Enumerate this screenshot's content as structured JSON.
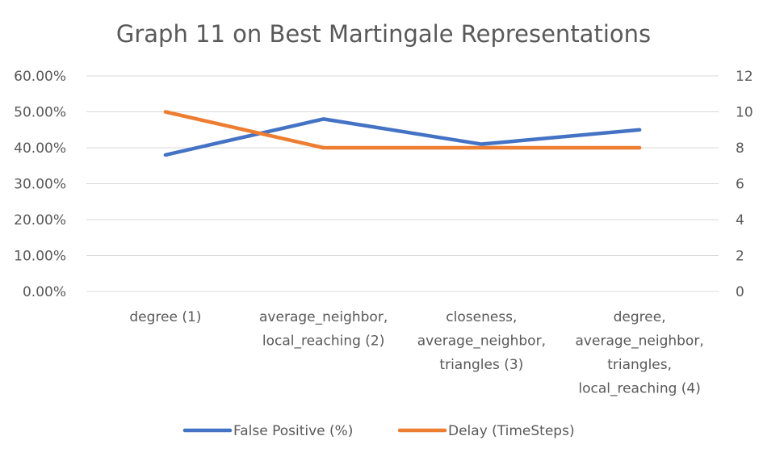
{
  "chart_data": {
    "type": "line",
    "title": "Graph 11 on Best Martingale Representations",
    "categories": [
      [
        "degree (1)"
      ],
      [
        "average_neighbor,",
        "local_reaching (2)"
      ],
      [
        "closeness,",
        "average_neighbor,",
        "triangles (3)"
      ],
      [
        "degree,",
        "average_neighbor,",
        "triangles,",
        "local_reaching (4)"
      ]
    ],
    "y_left": {
      "ticks": [
        "0.00%",
        "10.00%",
        "20.00%",
        "30.00%",
        "40.00%",
        "50.00%",
        "60.00%"
      ],
      "range": [
        0,
        60
      ]
    },
    "y_right": {
      "ticks": [
        "0",
        "2",
        "4",
        "6",
        "8",
        "10",
        "12"
      ],
      "range": [
        0,
        12
      ]
    },
    "series": [
      {
        "name": "False Positive (%)",
        "axis": "left",
        "color": "#4472c4",
        "values": [
          38,
          48,
          41,
          45
        ]
      },
      {
        "name": "Delay (TimeSteps)",
        "axis": "right",
        "color": "#ed7d31",
        "values": [
          10,
          8,
          8,
          8
        ]
      }
    ],
    "grid": true,
    "legend": "bottom"
  }
}
